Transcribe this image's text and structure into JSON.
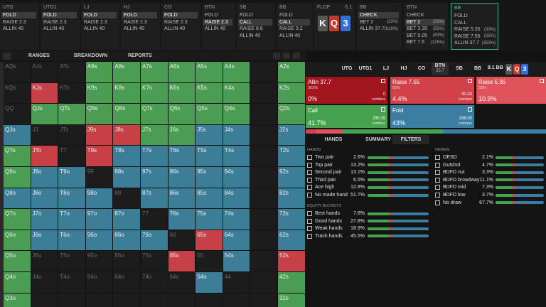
{
  "top_bar": {
    "columns": [
      {
        "title": "UTG",
        "actions": [
          {
            "label": "FOLD"
          },
          {
            "label": "RAISE 2.3"
          },
          {
            "label": "ALLIN 40"
          }
        ],
        "selected": 0
      },
      {
        "title": "UTG1",
        "actions": [
          {
            "label": "FOLD"
          },
          {
            "label": "RAISE 2.3"
          },
          {
            "label": "ALLIN 40"
          }
        ],
        "selected": 0
      },
      {
        "title": "LJ",
        "actions": [
          {
            "label": "FOLD"
          },
          {
            "label": "RAISE 2.3"
          },
          {
            "label": "ALLIN 40"
          }
        ],
        "selected": 0
      },
      {
        "title": "HJ",
        "actions": [
          {
            "label": "FOLD"
          },
          {
            "label": "RAISE 2.3"
          },
          {
            "label": "ALLIN 40"
          }
        ],
        "selected": 0
      },
      {
        "title": "CO",
        "actions": [
          {
            "label": "FOLD"
          },
          {
            "label": "RAISE 2.3"
          },
          {
            "label": "ALLIN 40"
          }
        ],
        "selected": 0
      },
      {
        "title": "BTN",
        "actions": [
          {
            "label": "FOLD"
          },
          {
            "label": "RAISE 2.3"
          },
          {
            "label": "ALLIN 40"
          }
        ],
        "selected": 1
      },
      {
        "title": "SB",
        "actions": [
          {
            "label": "FOLD"
          },
          {
            "label": "CALL"
          },
          {
            "label": "RAISE 8.6"
          },
          {
            "label": "ALLIN 40"
          }
        ],
        "selected": 1
      },
      {
        "title": "BB",
        "actions": [
          {
            "label": "FOLD"
          },
          {
            "label": "CALL"
          },
          {
            "label": "RAISE 9.2"
          },
          {
            "label": "ALLIN 40"
          }
        ],
        "selected": 1
      },
      {
        "title": "BB",
        "actions": [
          {
            "label": "CHECK"
          },
          {
            "label": "BET 2",
            "note": "(33%)"
          },
          {
            "label": "ALLIN 37.7",
            "note": "(618%)"
          }
        ],
        "selected": 0
      },
      {
        "title": "BTN",
        "actions": [
          {
            "label": "CHECK"
          },
          {
            "label": "BET 2",
            "note": "(33%)"
          },
          {
            "label": "BET 3.35",
            "note": "(55%)"
          },
          {
            "label": "BET 5.05",
            "note": "(83%)"
          },
          {
            "label": "BET 7.6",
            "note": "(125%)"
          }
        ],
        "selected": 1
      },
      {
        "title": "BB",
        "actions": [
          {
            "label": "FOLD"
          },
          {
            "label": "CALL"
          },
          {
            "label": "RAISE 5.35",
            "note": "(33%)"
          },
          {
            "label": "RAISE 7.55",
            "note": "(55%)"
          },
          {
            "label": "ALLIN 37.7",
            "note": "(353%)"
          }
        ],
        "active": true
      }
    ],
    "flop": {
      "title": "FLOP",
      "pot": "6.1",
      "cards": [
        {
          "rank": "K",
          "color": "#555555"
        },
        {
          "rank": "Q",
          "color": "#c0392b"
        },
        {
          "rank": "3",
          "color": "#2f6fd6"
        }
      ]
    }
  },
  "toolbar": {
    "tabs": [
      "RANGES",
      "BREAKDOWN",
      "REPORTS"
    ]
  },
  "hand_grid": {
    "rows": [
      {
        "labels": [
          "AQs",
          "AJs",
          "ATs",
          "A9s",
          "A8s",
          "A7s",
          "A6s",
          "A5s",
          "A4s",
          null,
          "A2s"
        ],
        "colors": [
          "#1c1c1c",
          "#1c1c1c",
          "#1c1c1c",
          "#4a9d52",
          "#4a9d52",
          "#4a9d52",
          "#4a9d52",
          "#4a9d52",
          "#4a9d52",
          "#1c1c1c",
          "#4a9d52"
        ]
      },
      {
        "labels": [
          "KQs",
          "KJs",
          "KTs",
          "K9s",
          "K8s",
          "K7s",
          "K6s",
          "K5s",
          "K4s",
          null,
          "K2s"
        ],
        "colors": [
          "#1c1c1c",
          "#c74048",
          "#1c1c1c",
          "#4a9d52",
          "#4a9d52",
          "#4a9d52",
          "#4a9d52",
          "#4a9d52",
          "#4a9d52",
          "#1c1c1c",
          "#4a9d52"
        ]
      },
      {
        "labels": [
          "QQ",
          "QJs",
          "QTs",
          "Q9s",
          "Q8s",
          "Q7s",
          "Q6s",
          "Q5s",
          "Q4s",
          null,
          "Q2s"
        ],
        "colors": [
          "#1c1c1c",
          "#4a9d52",
          "#4a9d52",
          "#4a9d52",
          "#4a9d52",
          "#4a9d52",
          "#4a9d52",
          "#4a9d52",
          "#4a9d52",
          "#1c1c1c",
          "#4a9d52"
        ]
      },
      {
        "labels": [
          "QJo",
          "JJ",
          "JTs",
          "J9s",
          "J8s",
          "J7s",
          "J6s",
          "J5s",
          "J4s",
          null,
          "J2s"
        ],
        "colors": [
          "#3c7d98",
          "#1c1c1c",
          "#1c1c1c",
          "#c74048",
          "#c74048",
          "#4a9d52",
          "#4a9d52",
          "#3c7d98",
          "#3c7d98",
          "#1c1c1c",
          "#3c7d98"
        ]
      },
      {
        "labels": [
          "QTo",
          "JTo",
          "TT",
          "T9s",
          "T8s",
          "T7s",
          "T6s",
          "T5s",
          "T4s",
          null,
          "T2s"
        ],
        "colors": [
          "#4a9d52",
          "#c74048",
          "#1c1c1c",
          "#c74048",
          "#3c7d98",
          "#3c7d98",
          "#3c7d98",
          "#3c7d98",
          "#3c7d98",
          "#1c1c1c",
          "#3c7d98"
        ]
      },
      {
        "labels": [
          "Q9o",
          "J9o",
          "T9o",
          "99",
          "98s",
          "97s",
          "96s",
          "95s",
          "94s",
          null,
          "92s"
        ],
        "colors": [
          "#4a9d52",
          "#3c7d98",
          "#3c7d98",
          "#1c1c1c",
          "#3c7d98",
          "#3c7d98",
          "#3c7d98",
          "#3c7d98",
          "#3c7d98",
          "#1c1c1c",
          "#3c7d98"
        ]
      },
      {
        "labels": [
          "Q8o",
          "J8o",
          "T8o",
          "98o",
          "88",
          "87s",
          "86s",
          "85s",
          "84s",
          null,
          "82s"
        ],
        "colors": [
          "#3c7d98",
          "#3c7d98",
          "#3c7d98",
          "#3c7d98",
          "#1c1c1c",
          "#3c7d98",
          "#3c7d98",
          "#3c7d98",
          "#3c7d98",
          "#1c1c1c",
          "#3c7d98"
        ]
      },
      {
        "labels": [
          "Q7o",
          "J7o",
          "T7o",
          "97o",
          "87o",
          "77",
          "76s",
          "75s",
          "74s",
          null,
          "72s"
        ],
        "colors": [
          "#4a9d52",
          "#3c7d98",
          "#3c7d98",
          "#3c7d98",
          "#3c7d98",
          "#1c1c1c",
          "#3c7d98",
          "#3c7d98",
          "#3c7d98",
          "#1c1c1c",
          "#3c7d98"
        ]
      },
      {
        "labels": [
          "Q6o",
          "J6o",
          "T6o",
          "96o",
          "86o",
          "76o",
          "66",
          "65s",
          "64s",
          null,
          "62s"
        ],
        "colors": [
          "#4a9d52",
          "#3c7d98",
          "#3c7d98",
          "#3c7d98",
          "#3c7d98",
          "#3c7d98",
          "#1c1c1c",
          "#c74048",
          "#3c7d98",
          "#1c1c1c",
          "#3c7d98"
        ]
      },
      {
        "labels": [
          "Q5o",
          "J5o",
          "T5o",
          "95o",
          "85o",
          "75o",
          "65o",
          "55",
          "54s",
          null,
          "52s"
        ],
        "colors": [
          "#4a9d52",
          "#1c1c1c",
          "#1c1c1c",
          "#1c1c1c",
          "#1c1c1c",
          "#1c1c1c",
          "#c74048",
          "#1c1c1c",
          "#3c7d98",
          "#1c1c1c",
          "#c74048"
        ]
      },
      {
        "labels": [
          "Q4o",
          "J4o",
          "T4o",
          "94o",
          "84o",
          "74o",
          "64o",
          "54o",
          "44",
          null,
          "42s"
        ],
        "colors": [
          "#4a9d52",
          "#1c1c1c",
          "#1c1c1c",
          "#1c1c1c",
          "#1c1c1c",
          "#1c1c1c",
          "#1c1c1c",
          "#3c7d98",
          "#1c1c1c",
          "#1c1c1c",
          "#4a9d52"
        ]
      },
      {
        "labels": [
          "Q3o",
          null,
          null,
          null,
          null,
          null,
          null,
          null,
          null,
          null,
          "32s"
        ],
        "colors": [
          "#4a9d52",
          "#1c1c1c",
          "#1c1c1c",
          "#1c1c1c",
          "#1c1c1c",
          "#1c1c1c",
          "#1c1c1c",
          "#1c1c1c",
          "#1c1c1c",
          "#1c1c1c",
          "#4a9d52"
        ]
      }
    ]
  },
  "panel": {
    "positions": [
      {
        "name": "UTG"
      },
      {
        "name": "UTG1"
      },
      {
        "name": "LJ"
      },
      {
        "name": "HJ"
      },
      {
        "name": "CO"
      },
      {
        "name": "BTN",
        "stack": "35.7"
      },
      {
        "name": "SB"
      },
      {
        "name": "BB"
      }
    ],
    "active_position": 5,
    "pot": "8.1 BB",
    "actions": [
      {
        "label": "Allin 37.7",
        "size": "353%",
        "combos": "0",
        "freq": 0,
        "freq_label": "0%",
        "color": "#a3161f"
      },
      {
        "label": "Raise 7.55",
        "size": "55%",
        "combos": "30.33",
        "freq": 4.4,
        "freq_label": "4.4%",
        "color": "#d2404a"
      },
      {
        "label": "Raise 5.35",
        "size": "33%",
        "freq": 10.9,
        "freq_label": "10.9%",
        "color": "#e0535a"
      },
      {
        "label": "Call",
        "combos": "290.15",
        "freq": 41.7,
        "freq_label": "41.7%",
        "color": "#47a24f"
      },
      {
        "label": "Fold",
        "combos": "298.00",
        "freq": 43,
        "freq_label": "43%",
        "color": "#3b7ea1"
      }
    ],
    "combos_label": "combos",
    "tabs": [
      "HANDS",
      "SUMMARY",
      "FILTERS"
    ],
    "active_tab": 2,
    "filters": {
      "hands": {
        "title": "HANDS",
        "items": [
          {
            "label": "Two pair",
            "pct": "2.6%"
          },
          {
            "label": "Top pair",
            "pct": "13.2%"
          },
          {
            "label": "Second pair",
            "pct": "13.1%"
          },
          {
            "label": "Third pair",
            "pct": "6.5%"
          },
          {
            "label": "Ace high",
            "pct": "12.8%"
          },
          {
            "label": "No made hand",
            "pct": "51.7%"
          }
        ]
      },
      "equity": {
        "title": "EQUITY BUCKETS",
        "items": [
          {
            "label": "Best hands",
            "pct": "7.8%"
          },
          {
            "label": "Good hands",
            "pct": "27.8%"
          },
          {
            "label": "Weak hands",
            "pct": "18.9%"
          },
          {
            "label": "Trash hands",
            "pct": "45.5%"
          }
        ]
      },
      "draws": {
        "title": "DRAWS",
        "items": [
          {
            "label": "OESD",
            "pct": "2.1%"
          },
          {
            "label": "Gutshot",
            "pct": "4.7%"
          },
          {
            "label": "BDFD nut",
            "pct": "3.3%"
          },
          {
            "label": "BDFD broadway",
            "pct": "11.1%"
          },
          {
            "label": "BDFD mid",
            "pct": "7.3%"
          },
          {
            "label": "BDFD low",
            "pct": "3.7%"
          },
          {
            "label": "No draw",
            "pct": "67.7%"
          }
        ]
      }
    }
  }
}
